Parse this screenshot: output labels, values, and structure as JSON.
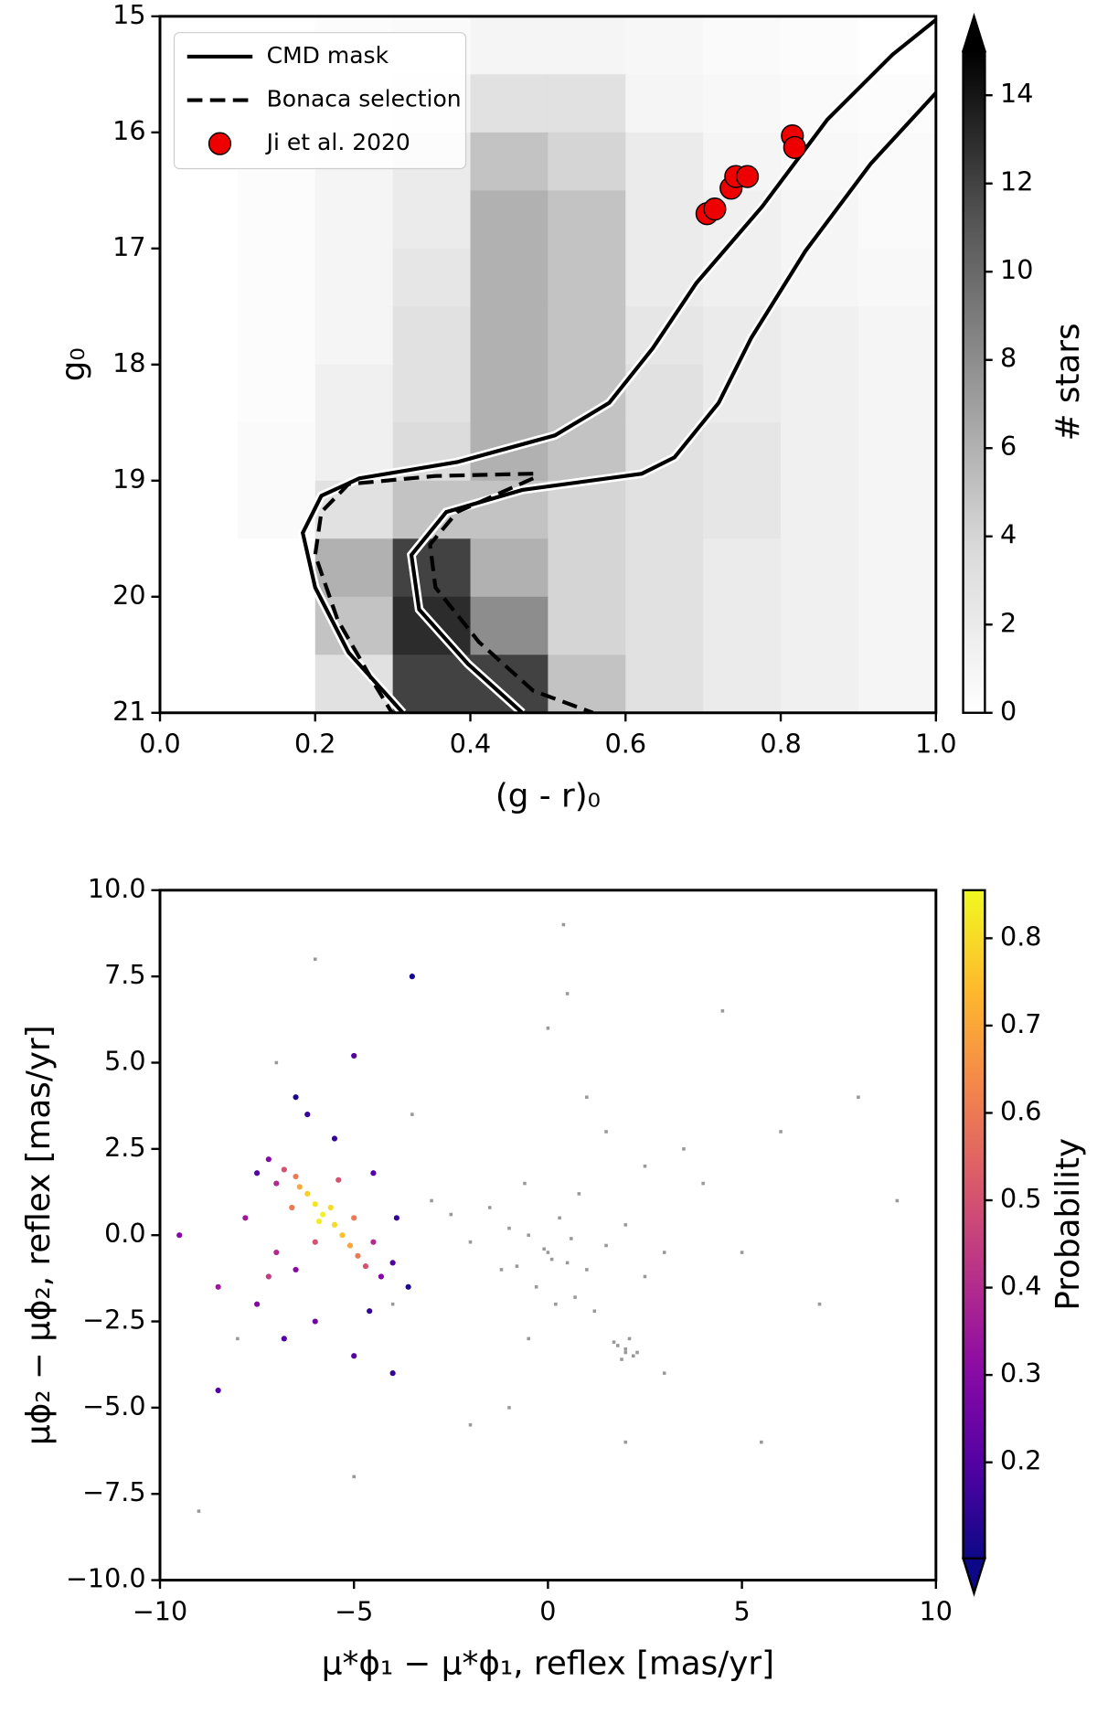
{
  "chart_data": [
    {
      "type": "hist2d",
      "xlabel": "(g - r)₀",
      "ylabel": "g₀",
      "xlim": [
        0,
        1
      ],
      "ylim": [
        21,
        15
      ],
      "xticks": [
        {
          "value": 0,
          "label": "0.0"
        },
        0.2,
        0.4,
        0.6,
        0.8,
        {
          "value": 1,
          "label": "1.0"
        }
      ],
      "yticks": [
        15,
        16,
        17,
        18,
        19,
        20,
        21
      ],
      "xbins": [
        0,
        0.1,
        0.2,
        0.3,
        0.4,
        0.5,
        0.6,
        0.7,
        0.8,
        0.9,
        1.0
      ],
      "ybins": [
        15,
        15.5,
        16,
        16.5,
        17,
        17.5,
        18,
        18.5,
        19,
        19.5,
        20,
        20.5,
        21
      ],
      "counts": [
        [
          0,
          0,
          0.3,
          0.5,
          1,
          1,
          0.8,
          0.5,
          0.3,
          0
        ],
        [
          0,
          0,
          0.5,
          1,
          3,
          3,
          1,
          0.7,
          0.5,
          0.3
        ],
        [
          0,
          0.3,
          1,
          2,
          5,
          4,
          2,
          1,
          0.7,
          0.5
        ],
        [
          0,
          0.3,
          1,
          2,
          6,
          5,
          2,
          1.5,
          1,
          0.5
        ],
        [
          0,
          0.3,
          1,
          2.5,
          6,
          5,
          2,
          1.5,
          1,
          0.7
        ],
        [
          0,
          0.3,
          1,
          3,
          6,
          5,
          2.5,
          2,
          1.5,
          1
        ],
        [
          0,
          0.3,
          1.5,
          3,
          6,
          5,
          3,
          2,
          1.5,
          1
        ],
        [
          0,
          0.5,
          1.5,
          3.5,
          6,
          5,
          3,
          2.5,
          1.5,
          1
        ],
        [
          0,
          0.5,
          3,
          5,
          5,
          4,
          3,
          2.5,
          1.5,
          1
        ],
        [
          0,
          0,
          6,
          12,
          6,
          4,
          3,
          2,
          1.5,
          1
        ],
        [
          0,
          0,
          5,
          13,
          8,
          4,
          3,
          2,
          1.5,
          1
        ],
        [
          0,
          0,
          3,
          12,
          12,
          5,
          3,
          2,
          1.5,
          1
        ]
      ],
      "colorbar": {
        "label": "# stars",
        "clim": [
          0,
          15
        ],
        "ticks": [
          0,
          2,
          4,
          6,
          8,
          10,
          12,
          14
        ],
        "cmap": "Greys",
        "extend": "max"
      },
      "legend": "upper left",
      "series": [
        {
          "name": "CMD mask",
          "style": "solid",
          "color": "#000000",
          "lines": [
            {
              "x": [
                1.0,
                0.944,
                0.86,
                0.776,
                0.691,
                0.635,
                0.579,
                0.509,
                0.383,
                0.257,
                0.208,
                0.184,
                0.2,
                0.243,
                0.313
              ],
              "y": [
                15.03,
                15.33,
                15.89,
                16.64,
                17.3,
                17.86,
                18.33,
                18.61,
                18.84,
                18.98,
                19.13,
                19.45,
                19.92,
                20.48,
                21
              ]
            },
            {
              "x": [
                1.0,
                0.916,
                0.832,
                0.762,
                0.72,
                0.663,
                0.621,
                0.467,
                0.369,
                0.324,
                0.334,
                0.397,
                0.467
              ],
              "y": [
                15.66,
                16.27,
                17.02,
                17.77,
                18.33,
                18.8,
                18.94,
                19.08,
                19.27,
                19.64,
                20.11,
                20.58,
                21
              ]
            }
          ]
        },
        {
          "name": "Bonaca selection",
          "style": "dashed",
          "color": "#000000",
          "lines": [
            {
              "x": [
                0.481,
                0.355,
                0.243,
                0.208,
                0.2,
                0.229,
                0.278,
                0.299
              ],
              "y": [
                18.94,
                18.96,
                19.03,
                19.27,
                19.64,
                20.2,
                20.77,
                21
              ]
            },
            {
              "x": [
                0.481,
                0.383,
                0.348,
                0.355,
                0.411,
                0.481,
                0.558
              ],
              "y": [
                18.98,
                19.27,
                19.55,
                19.92,
                20.39,
                20.81,
                21
              ]
            }
          ]
        },
        {
          "name": "Ji et al. 2020",
          "style": "marker",
          "color": "#ee0000",
          "x": [
            0.705,
            0.715,
            0.736,
            0.742,
            0.757,
            0.815,
            0.818
          ],
          "y": [
            16.7,
            16.66,
            16.48,
            16.38,
            16.38,
            16.03,
            16.13
          ]
        }
      ]
    },
    {
      "type": "scatter",
      "xlabel": "μ*ϕ₁ − μ*ϕ₁, reflex [mas/yr]",
      "ylabel": "μϕ₂ − μϕ₂, reflex [mas/yr]",
      "xlim": [
        -10,
        10
      ],
      "ylim": [
        -10,
        10
      ],
      "xticks": [
        {
          "value": -10,
          "label": "−10"
        },
        {
          "value": -5,
          "label": "−5"
        },
        0,
        5,
        10
      ],
      "yticks": [
        {
          "value": 10,
          "label": "10.0"
        },
        7.5,
        {
          "value": 5,
          "label": "5.0"
        },
        2.5,
        {
          "value": 0,
          "label": "0.0"
        },
        {
          "value": -2.5,
          "label": "−2.5"
        },
        {
          "value": -5,
          "label": "−5.0"
        },
        {
          "value": -7.5,
          "label": "−7.5"
        },
        {
          "value": -10,
          "label": "−10.0"
        }
      ],
      "colorbar": {
        "label": "Probability",
        "clim": [
          0.09,
          0.855
        ],
        "ticks": [
          0.2,
          0.3,
          0.4,
          0.5,
          0.6,
          0.7,
          0.8
        ],
        "cmap": "plasma",
        "extend": "min"
      },
      "series": [
        {
          "color": "#000000",
          "x": [
            0,
            0.5,
            -0.5,
            1,
            -1,
            0.3,
            -0.3,
            1.5,
            -1.5,
            0.8,
            -0.8,
            2,
            -2,
            0.2,
            0.6,
            -0.6,
            1.2,
            -1.2,
            2.5,
            -2.5,
            3,
            -3,
            0.1,
            -0.1,
            0.7,
            2,
            2.2,
            1.8,
            2.1,
            1.9,
            2.3,
            1.7,
            2.0,
            4,
            -4,
            5,
            6,
            -7,
            7,
            3.5,
            -3.5,
            8,
            -8,
            1,
            0,
            -1,
            2,
            -2,
            3,
            -5,
            4.5,
            5.5,
            -6,
            0.5,
            9,
            -9,
            2.5,
            1.5,
            -0.5,
            0.4
          ],
          "y": [
            -0.5,
            -0.8,
            0,
            -1,
            0.2,
            0.5,
            -1.5,
            -0.3,
            0.8,
            1.2,
            -0.9,
            0.3,
            -0.2,
            -2,
            -0.1,
            1.5,
            -2.2,
            -1,
            -1.2,
            0.6,
            -0.5,
            1,
            -0.7,
            -0.4,
            -1.8,
            -3.3,
            -3.5,
            -3.2,
            -3.0,
            -3.6,
            -3.4,
            -3.1,
            -3.4,
            1.5,
            -2,
            -0.5,
            3,
            5,
            -2,
            2.5,
            3.5,
            4,
            -3,
            4,
            6,
            -5,
            -6,
            -5.5,
            -4,
            -7,
            6.5,
            -6,
            8,
            7,
            1,
            -8,
            2,
            3,
            -3,
            9
          ]
        },
        {
          "cmap": "plasma",
          "x": [
            -3.5,
            -3.6,
            -6.5,
            -3.9,
            -5.5,
            -6.2,
            -4.6,
            -4.0,
            -4.0,
            -7.5,
            -4.5,
            -5.0,
            -6.8,
            -8.5,
            -5.0,
            -6.0,
            -4.3,
            -7.2,
            -6.5,
            -7.5,
            -9.5,
            -7.8,
            -8.5,
            -4.5,
            -7.0,
            -7.0,
            -7.2,
            -6.8,
            -4.7,
            -6.0,
            -5.4,
            -4.9,
            -6.5,
            -5.0,
            -6.6,
            -6.4,
            -5.3,
            -5.1,
            -6.2,
            -5.5,
            -5.6,
            -6.0,
            -5.9,
            -5.8
          ],
          "y": [
            7.5,
            -1.5,
            4.0,
            0.5,
            2.8,
            3.5,
            -2.2,
            -4.0,
            -0.8,
            1.8,
            1.8,
            -3.5,
            -3.0,
            -4.5,
            5.2,
            -2.5,
            -1.2,
            2.2,
            -1.0,
            -2.0,
            0,
            0.5,
            -1.5,
            -0.2,
            1.5,
            -0.5,
            -1.2,
            1.9,
            -0.9,
            -0.2,
            1.6,
            -0.6,
            1.7,
            0.5,
            0.8,
            1.4,
            0,
            -0.3,
            1.2,
            0.3,
            0.8,
            0.9,
            0.4,
            0.6
          ],
          "c": [
            0.1,
            0.12,
            0.12,
            0.15,
            0.15,
            0.15,
            0.15,
            0.15,
            0.2,
            0.2,
            0.2,
            0.2,
            0.2,
            0.2,
            0.2,
            0.25,
            0.3,
            0.3,
            0.3,
            0.3,
            0.3,
            0.35,
            0.35,
            0.4,
            0.4,
            0.4,
            0.45,
            0.5,
            0.5,
            0.5,
            0.5,
            0.6,
            0.6,
            0.6,
            0.6,
            0.7,
            0.75,
            0.7,
            0.78,
            0.8,
            0.8,
            0.82,
            0.83,
            0.84
          ]
        }
      ]
    }
  ]
}
